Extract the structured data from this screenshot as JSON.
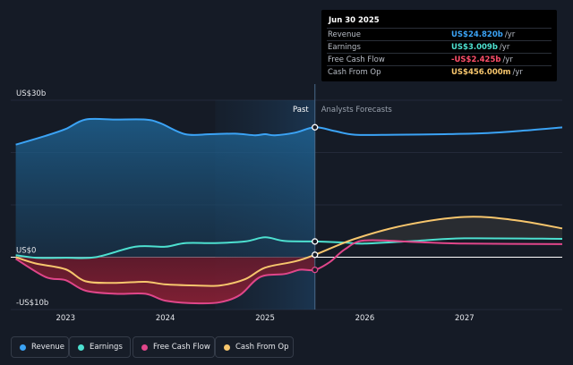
{
  "tooltip": {
    "date": "Jun 30 2025",
    "rows": [
      {
        "label": "Revenue",
        "value": "US$24.820b",
        "unit": "/yr",
        "color": "#3ba3f5"
      },
      {
        "label": "Earnings",
        "value": "US$3.009b",
        "unit": "/yr",
        "color": "#4de0d0"
      },
      {
        "label": "Free Cash Flow",
        "value": "-US$2.425b",
        "unit": "/yr",
        "color": "#ff4f6a"
      },
      {
        "label": "Cash From Op",
        "value": "US$456.000m",
        "unit": "/yr",
        "color": "#f7c66d"
      }
    ]
  },
  "legend": [
    {
      "label": "Revenue",
      "color": "#3ba3f5"
    },
    {
      "label": "Earnings",
      "color": "#4de0d0"
    },
    {
      "label": "Free Cash Flow",
      "color": "#e0468a"
    },
    {
      "label": "Cash From Op",
      "color": "#f7c66d"
    }
  ],
  "chart_data": {
    "type": "line",
    "title": "",
    "section_labels": {
      "past": "Past",
      "forecast": "Analysts Forecasts"
    },
    "x_ticks": [
      "2023",
      "2024",
      "2025",
      "2026",
      "2027"
    ],
    "y_ticks": [
      {
        "value": 30,
        "label": "US$30b"
      },
      {
        "value": 0,
        "label": "US$0"
      },
      {
        "value": -10,
        "label": "-US$10b"
      }
    ],
    "ylim": [
      -10,
      30
    ],
    "xlim": [
      2022.45,
      2027.98
    ],
    "divider_x": 2025.5,
    "highlight_start": 2024.5,
    "units": "US$ billions",
    "series": [
      {
        "name": "Revenue",
        "color": "#3ba3f5",
        "points": [
          [
            2022.5,
            21.5
          ],
          [
            2022.8,
            23.2
          ],
          [
            2023.0,
            24.5
          ],
          [
            2023.2,
            26.3
          ],
          [
            2023.5,
            26.3
          ],
          [
            2023.8,
            26.3
          ],
          [
            2023.95,
            25.6
          ],
          [
            2024.2,
            23.5
          ],
          [
            2024.45,
            23.5
          ],
          [
            2024.7,
            23.6
          ],
          [
            2024.9,
            23.3
          ],
          [
            2025.0,
            23.5
          ],
          [
            2025.1,
            23.3
          ],
          [
            2025.3,
            23.8
          ],
          [
            2025.5,
            24.82
          ],
          [
            2025.7,
            24.1
          ],
          [
            2025.9,
            23.4
          ],
          [
            2026.3,
            23.4
          ],
          [
            2026.8,
            23.5
          ],
          [
            2027.2,
            23.7
          ],
          [
            2027.6,
            24.2
          ],
          [
            2027.98,
            24.8
          ]
        ]
      },
      {
        "name": "Earnings",
        "color": "#4de0d0",
        "points": [
          [
            2022.5,
            0.4
          ],
          [
            2022.7,
            -0.1
          ],
          [
            2023.0,
            -0.1
          ],
          [
            2023.3,
            0.0
          ],
          [
            2023.7,
            2.0
          ],
          [
            2024.0,
            2.0
          ],
          [
            2024.2,
            2.7
          ],
          [
            2024.5,
            2.7
          ],
          [
            2024.8,
            3.0
          ],
          [
            2025.0,
            3.8
          ],
          [
            2025.2,
            3.1
          ],
          [
            2025.5,
            3.0
          ],
          [
            2025.8,
            2.8
          ],
          [
            2026.0,
            2.6
          ],
          [
            2026.5,
            3.1
          ],
          [
            2027.0,
            3.6
          ],
          [
            2027.98,
            3.5
          ]
        ]
      },
      {
        "name": "Free Cash Flow",
        "color": "#e0468a",
        "points": [
          [
            2022.5,
            -0.3
          ],
          [
            2022.8,
            -3.8
          ],
          [
            2023.0,
            -4.4
          ],
          [
            2023.2,
            -6.4
          ],
          [
            2023.5,
            -7.0
          ],
          [
            2023.8,
            -7.0
          ],
          [
            2024.0,
            -8.3
          ],
          [
            2024.3,
            -8.8
          ],
          [
            2024.55,
            -8.6
          ],
          [
            2024.75,
            -7.2
          ],
          [
            2024.95,
            -3.8
          ],
          [
            2025.2,
            -3.2
          ],
          [
            2025.35,
            -2.4
          ],
          [
            2025.5,
            -2.425
          ],
          [
            2025.65,
            -0.9
          ],
          [
            2025.8,
            1.5
          ],
          [
            2026.0,
            3.2
          ],
          [
            2026.5,
            2.9
          ],
          [
            2027.0,
            2.6
          ],
          [
            2027.98,
            2.5
          ]
        ]
      },
      {
        "name": "Cash From Op",
        "color": "#f7c66d",
        "points": [
          [
            2022.5,
            0.0
          ],
          [
            2022.7,
            -1.2
          ],
          [
            2023.0,
            -2.3
          ],
          [
            2023.2,
            -4.6
          ],
          [
            2023.5,
            -4.9
          ],
          [
            2023.8,
            -4.7
          ],
          [
            2024.0,
            -5.2
          ],
          [
            2024.3,
            -5.4
          ],
          [
            2024.55,
            -5.4
          ],
          [
            2024.8,
            -4.2
          ],
          [
            2025.0,
            -2.0
          ],
          [
            2025.3,
            -0.8
          ],
          [
            2025.5,
            0.456
          ],
          [
            2025.9,
            3.5
          ],
          [
            2026.4,
            6.1
          ],
          [
            2027.0,
            7.7
          ],
          [
            2027.5,
            7.1
          ],
          [
            2027.98,
            5.5
          ]
        ]
      }
    ]
  }
}
